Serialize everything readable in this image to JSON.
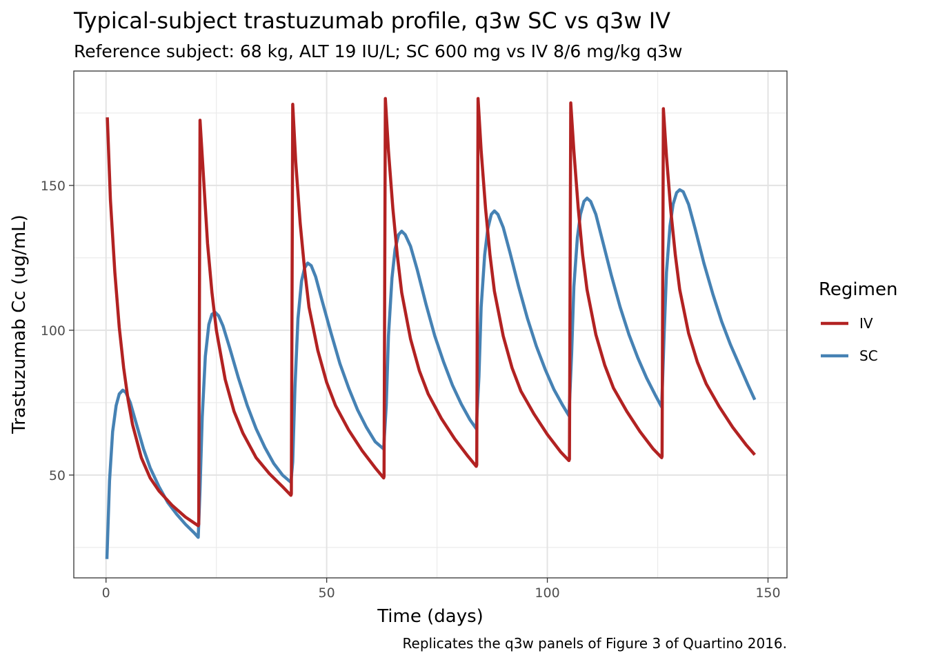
{
  "chart_data": {
    "type": "line",
    "title": "Typical-subject trastuzumab profile, q3w SC vs q3w IV",
    "subtitle": "Reference subject: 68 kg, ALT 19 IU/L; SC 600 mg vs IV 8/6 mg/kg q3w",
    "caption": "Replicates the q3w panels of Figure 3 of Quartino 2016.",
    "xlabel": "Time (days)",
    "ylabel": "Trastuzumab Cc (ug/mL)",
    "xlim": [
      -7.3,
      154.3
    ],
    "ylim": [
      14.5,
      189.5
    ],
    "x_ticks": [
      0,
      50,
      100,
      150
    ],
    "x_tick_labels": [
      "0",
      "50",
      "100",
      "150"
    ],
    "y_ticks": [
      50,
      100,
      150
    ],
    "y_tick_labels": [
      "50",
      "100",
      "150"
    ],
    "grid": true,
    "legend": {
      "title": "Regimen",
      "position": "right",
      "entries": [
        "IV",
        "SC"
      ]
    },
    "series": [
      {
        "name": "IV",
        "color": "#b22222",
        "points": [
          [
            0.3,
            173.5
          ],
          [
            1,
            145
          ],
          [
            2,
            120
          ],
          [
            3,
            101
          ],
          [
            4,
            87
          ],
          [
            5,
            76
          ],
          [
            6,
            67.5
          ],
          [
            8,
            56
          ],
          [
            10,
            49
          ],
          [
            12,
            44.5
          ],
          [
            15,
            39.5
          ],
          [
            18,
            35.5
          ],
          [
            20.9,
            32.5
          ],
          [
            21.0,
            33
          ],
          [
            21.3,
            172.5
          ],
          [
            22,
            155
          ],
          [
            23,
            130
          ],
          [
            24,
            113
          ],
          [
            25,
            100
          ],
          [
            27,
            83
          ],
          [
            29,
            72
          ],
          [
            31,
            64.5
          ],
          [
            34,
            56
          ],
          [
            37,
            50.5
          ],
          [
            40,
            46
          ],
          [
            41.9,
            43
          ],
          [
            42.0,
            43.5
          ],
          [
            42.3,
            178
          ],
          [
            43,
            158
          ],
          [
            44,
            137
          ],
          [
            45,
            121
          ],
          [
            46,
            108
          ],
          [
            48,
            93
          ],
          [
            50,
            82
          ],
          [
            52,
            74
          ],
          [
            55,
            65.5
          ],
          [
            58,
            58.5
          ],
          [
            61,
            52.5
          ],
          [
            62.9,
            49
          ],
          [
            63.0,
            49.5
          ],
          [
            63.3,
            180
          ],
          [
            64,
            162
          ],
          [
            65,
            142
          ],
          [
            66,
            126
          ],
          [
            67,
            113
          ],
          [
            69,
            97
          ],
          [
            71,
            86
          ],
          [
            73,
            78
          ],
          [
            76,
            69.5
          ],
          [
            79,
            62.5
          ],
          [
            82,
            56.5
          ],
          [
            83.9,
            53
          ],
          [
            84.0,
            53.5
          ],
          [
            84.3,
            180
          ],
          [
            85,
            162
          ],
          [
            86,
            142
          ],
          [
            87,
            126
          ],
          [
            88,
            113.5
          ],
          [
            90,
            98
          ],
          [
            92,
            87
          ],
          [
            94,
            79
          ],
          [
            97,
            71
          ],
          [
            100,
            64
          ],
          [
            103,
            58
          ],
          [
            104.9,
            55
          ],
          [
            105.0,
            55.5
          ],
          [
            105.3,
            178.5
          ],
          [
            106,
            162
          ],
          [
            107,
            142
          ],
          [
            108,
            126
          ],
          [
            109,
            114
          ],
          [
            111,
            98.5
          ],
          [
            113,
            88
          ],
          [
            115,
            80
          ],
          [
            118,
            72
          ],
          [
            121,
            65
          ],
          [
            124,
            59
          ],
          [
            125.9,
            56
          ],
          [
            126.0,
            56.5
          ],
          [
            126.3,
            176.5
          ],
          [
            127,
            160
          ],
          [
            128,
            141
          ],
          [
            129,
            126
          ],
          [
            130,
            114
          ],
          [
            132,
            99
          ],
          [
            134,
            89
          ],
          [
            136,
            81.5
          ],
          [
            139,
            73.5
          ],
          [
            142,
            66.5
          ],
          [
            145,
            60.5
          ],
          [
            147,
            57
          ]
        ]
      },
      {
        "name": "SC",
        "color": "#4682b4",
        "points": [
          [
            0.2,
            21
          ],
          [
            0.8,
            48
          ],
          [
            1.5,
            65
          ],
          [
            2.3,
            74
          ],
          [
            3,
            78
          ],
          [
            3.8,
            79.3
          ],
          [
            4.5,
            78.5
          ],
          [
            5.5,
            75
          ],
          [
            7,
            67
          ],
          [
            8.5,
            59
          ],
          [
            10,
            52.5
          ],
          [
            12,
            46
          ],
          [
            14,
            40.5
          ],
          [
            16,
            36.5
          ],
          [
            18,
            33
          ],
          [
            20,
            30
          ],
          [
            20.9,
            28.5
          ],
          [
            21.3,
            45
          ],
          [
            21.8,
            70
          ],
          [
            22.5,
            91
          ],
          [
            23.3,
            102
          ],
          [
            24,
            105.5
          ],
          [
            24.7,
            106.2
          ],
          [
            25.5,
            105
          ],
          [
            26.5,
            101.5
          ],
          [
            28,
            94
          ],
          [
            30,
            83.5
          ],
          [
            32,
            74
          ],
          [
            34,
            66
          ],
          [
            36,
            59.5
          ],
          [
            38,
            54
          ],
          [
            40,
            50
          ],
          [
            41.9,
            47.5
          ],
          [
            42.3,
            54.5
          ],
          [
            42.8,
            80
          ],
          [
            43.5,
            104
          ],
          [
            44.3,
            117
          ],
          [
            45,
            121.5
          ],
          [
            45.7,
            123.2
          ],
          [
            46.5,
            122.3
          ],
          [
            47.5,
            118.5
          ],
          [
            49,
            110
          ],
          [
            51,
            99
          ],
          [
            53,
            88.5
          ],
          [
            55,
            80
          ],
          [
            57,
            72.5
          ],
          [
            59,
            66.5
          ],
          [
            61,
            61.5
          ],
          [
            62.9,
            59
          ],
          [
            63.5,
            74
          ],
          [
            64,
            98
          ],
          [
            64.8,
            118
          ],
          [
            65.5,
            128
          ],
          [
            66.3,
            133
          ],
          [
            67,
            134.2
          ],
          [
            67.8,
            133
          ],
          [
            69,
            129
          ],
          [
            70.5,
            121
          ],
          [
            72.5,
            109
          ],
          [
            74.5,
            98
          ],
          [
            76.5,
            89
          ],
          [
            78.5,
            81
          ],
          [
            80.5,
            74.5
          ],
          [
            82.5,
            69
          ],
          [
            83.9,
            66
          ],
          [
            84.5,
            84
          ],
          [
            85,
            108
          ],
          [
            85.8,
            126
          ],
          [
            86.5,
            135
          ],
          [
            87.3,
            140
          ],
          [
            88,
            141.2
          ],
          [
            88.8,
            140
          ],
          [
            90,
            135.5
          ],
          [
            91.5,
            127
          ],
          [
            93.5,
            115
          ],
          [
            95.5,
            104
          ],
          [
            97.5,
            94.5
          ],
          [
            99.5,
            86.5
          ],
          [
            101.5,
            79.5
          ],
          [
            103.5,
            74
          ],
          [
            104.9,
            70.5
          ],
          [
            105.5,
            92
          ],
          [
            106,
            115
          ],
          [
            106.8,
            132
          ],
          [
            107.5,
            140
          ],
          [
            108.3,
            144.5
          ],
          [
            109,
            145.6
          ],
          [
            109.8,
            144.5
          ],
          [
            111,
            140
          ],
          [
            112.5,
            131
          ],
          [
            114.5,
            119
          ],
          [
            116.5,
            108
          ],
          [
            118.5,
            98.5
          ],
          [
            120.5,
            90.5
          ],
          [
            122.5,
            83.5
          ],
          [
            124.5,
            77.5
          ],
          [
            125.9,
            73.5
          ],
          [
            126.5,
            100
          ],
          [
            127,
            120
          ],
          [
            127.8,
            136
          ],
          [
            128.5,
            143.5
          ],
          [
            129.3,
            147.5
          ],
          [
            130,
            148.5
          ],
          [
            130.8,
            147.8
          ],
          [
            132,
            143.5
          ],
          [
            133.5,
            135
          ],
          [
            135.5,
            123
          ],
          [
            137.5,
            112.5
          ],
          [
            139.5,
            103
          ],
          [
            141.5,
            95
          ],
          [
            143.5,
            88
          ],
          [
            145.5,
            81
          ],
          [
            147,
            76
          ]
        ]
      }
    ]
  }
}
